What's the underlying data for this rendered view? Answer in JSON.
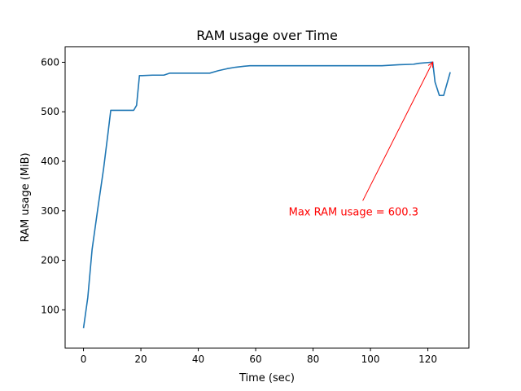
{
  "chart_data": {
    "type": "line",
    "title": "RAM usage over Time",
    "xlabel": "Time (sec)",
    "ylabel": "RAM usage (MiB)",
    "xlim": [
      -6.4,
      134.3
    ],
    "ylim": [
      23,
      631
    ],
    "xticks": [
      0,
      20,
      40,
      60,
      80,
      100,
      120
    ],
    "yticks": [
      100,
      200,
      300,
      400,
      500,
      600
    ],
    "grid": false,
    "series": [
      {
        "color": "#1f77b4",
        "x": [
          0,
          1.5,
          3,
          5,
          7,
          8.5,
          9.5,
          12,
          15,
          17.5,
          18.5,
          19.5,
          20.5,
          24,
          28,
          30,
          35,
          40,
          44,
          47,
          50,
          53,
          56,
          58,
          62,
          70,
          80,
          90,
          100,
          104,
          110,
          115,
          117,
          121.7,
          122.5,
          124,
          125.5,
          127.8
        ],
        "values": [
          63,
          125,
          222,
          305,
          385,
          455,
          503,
          503,
          503,
          503,
          513,
          573,
          573,
          574,
          574,
          578,
          578,
          578,
          578,
          583,
          587,
          590,
          592,
          593,
          593,
          593,
          593,
          593,
          593,
          593,
          595,
          596,
          598,
          600.3,
          560,
          533,
          533,
          580
        ]
      }
    ],
    "annotation": {
      "text": "Max RAM usage = 600.3",
      "color": "#ff0000",
      "xy": [
        121.7,
        600.3
      ],
      "xytext": [
        71.5,
        299
      ]
    }
  }
}
